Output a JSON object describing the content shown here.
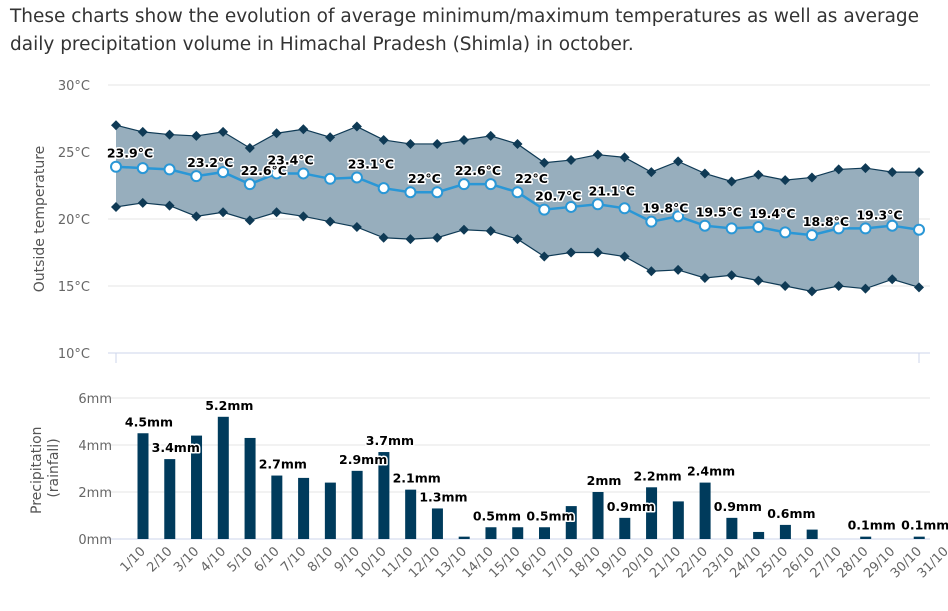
{
  "intro": "These charts show the evolution of average minimum/maximum temperatures as well as average daily precipitation volume in Himachal Pradesh (Shimla) in october.",
  "chart_data": [
    {
      "type": "area",
      "ylabel": "Outside temperature",
      "ylim": [
        10,
        30
      ],
      "yticks": [
        "10°C",
        "15°C",
        "20°C",
        "25°C",
        "30°C"
      ],
      "ytick_values": [
        10,
        15,
        20,
        25,
        30
      ],
      "grid": true,
      "categories": [
        "1/10",
        "2/10",
        "3/10",
        "4/10",
        "5/10",
        "6/10",
        "7/10",
        "8/10",
        "9/10",
        "10/10",
        "11/10",
        "12/10",
        "13/10",
        "14/10",
        "15/10",
        "16/10",
        "17/10",
        "18/10",
        "19/10",
        "20/10",
        "21/10",
        "22/10",
        "23/10",
        "24/10",
        "25/10",
        "26/10",
        "27/10",
        "28/10",
        "29/10",
        "30/10",
        "31/10"
      ],
      "max": [
        27.0,
        26.5,
        26.3,
        26.2,
        26.5,
        25.3,
        26.4,
        26.7,
        26.1,
        26.9,
        25.9,
        25.6,
        25.6,
        25.9,
        26.2,
        25.6,
        24.2,
        24.4,
        24.8,
        24.6,
        23.5,
        24.3,
        23.4,
        22.8,
        23.3,
        22.9,
        23.1,
        23.7,
        23.8,
        23.5,
        23.5
      ],
      "min": [
        20.9,
        21.2,
        21.0,
        20.2,
        20.5,
        19.9,
        20.5,
        20.2,
        19.8,
        19.4,
        18.6,
        18.5,
        18.6,
        19.2,
        19.1,
        18.5,
        17.2,
        17.5,
        17.5,
        17.2,
        16.1,
        16.2,
        15.6,
        15.8,
        15.4,
        15.0,
        14.6,
        15.0,
        14.8,
        15.5,
        14.9
      ],
      "average": [
        23.9,
        23.8,
        23.7,
        23.2,
        23.5,
        22.6,
        23.4,
        23.4,
        23.0,
        23.1,
        22.3,
        22.0,
        22.0,
        22.6,
        22.6,
        22.0,
        20.7,
        20.9,
        21.1,
        20.8,
        19.8,
        20.2,
        19.5,
        19.3,
        19.4,
        19.0,
        18.8,
        19.3,
        19.3,
        19.5,
        19.2
      ],
      "average_labels": [
        "23.9°C",
        "",
        "",
        "23.2°C",
        "",
        "22.6°C",
        "23.4°C",
        "",
        "",
        "23.1°C",
        "",
        "22°C",
        "",
        "22.6°C",
        "",
        "22°C",
        "20.7°C",
        "",
        "21.1°C",
        "",
        "19.8°C",
        "",
        "19.5°C",
        "",
        "19.4°C",
        "",
        "18.8°C",
        "",
        "19.3°C",
        "",
        ""
      ],
      "colors": {
        "band": "#97aebd",
        "band_edge": "#0f3a55",
        "average": "#2a97d6"
      }
    },
    {
      "type": "bar",
      "ylabel": "Precipitation (rainfall)",
      "ylabel_lines": [
        "Precipitation",
        "(rainfall)"
      ],
      "ylim": [
        0,
        6
      ],
      "yticks": [
        "0mm",
        "2mm",
        "4mm",
        "6mm"
      ],
      "ytick_values": [
        0,
        2,
        4,
        6
      ],
      "grid": true,
      "categories": [
        "1/10",
        "2/10",
        "3/10",
        "4/10",
        "5/10",
        "6/10",
        "7/10",
        "8/10",
        "9/10",
        "10/10",
        "11/10",
        "12/10",
        "13/10",
        "14/10",
        "15/10",
        "16/10",
        "17/10",
        "18/10",
        "19/10",
        "20/10",
        "21/10",
        "22/10",
        "23/10",
        "24/10",
        "25/10",
        "26/10",
        "27/10",
        "28/10",
        "29/10",
        "30/10",
        "31/10"
      ],
      "values": [
        4.5,
        3.4,
        4.4,
        5.2,
        4.3,
        2.7,
        2.6,
        2.4,
        2.9,
        3.7,
        2.1,
        1.3,
        0.1,
        0.5,
        0.5,
        0.5,
        1.4,
        2.0,
        0.9,
        2.2,
        1.6,
        2.4,
        0.9,
        0.3,
        0.6,
        0.4,
        0,
        0.1,
        0,
        0.1,
        0
      ],
      "value_labels": [
        "4.5mm",
        "3.4mm",
        "",
        "5.2mm",
        "",
        "2.7mm",
        "",
        "",
        "2.9mm",
        "3.7mm",
        "2.1mm",
        "1.3mm",
        "",
        "0.5mm",
        "",
        "0.5mm",
        "",
        "2mm",
        "0.9mm",
        "2.2mm",
        "",
        "2.4mm",
        "0.9mm",
        "",
        "0.6mm",
        "",
        "",
        "0.1mm",
        "",
        "0.1mm",
        ""
      ],
      "colors": {
        "bar": "#003b5c"
      }
    }
  ]
}
